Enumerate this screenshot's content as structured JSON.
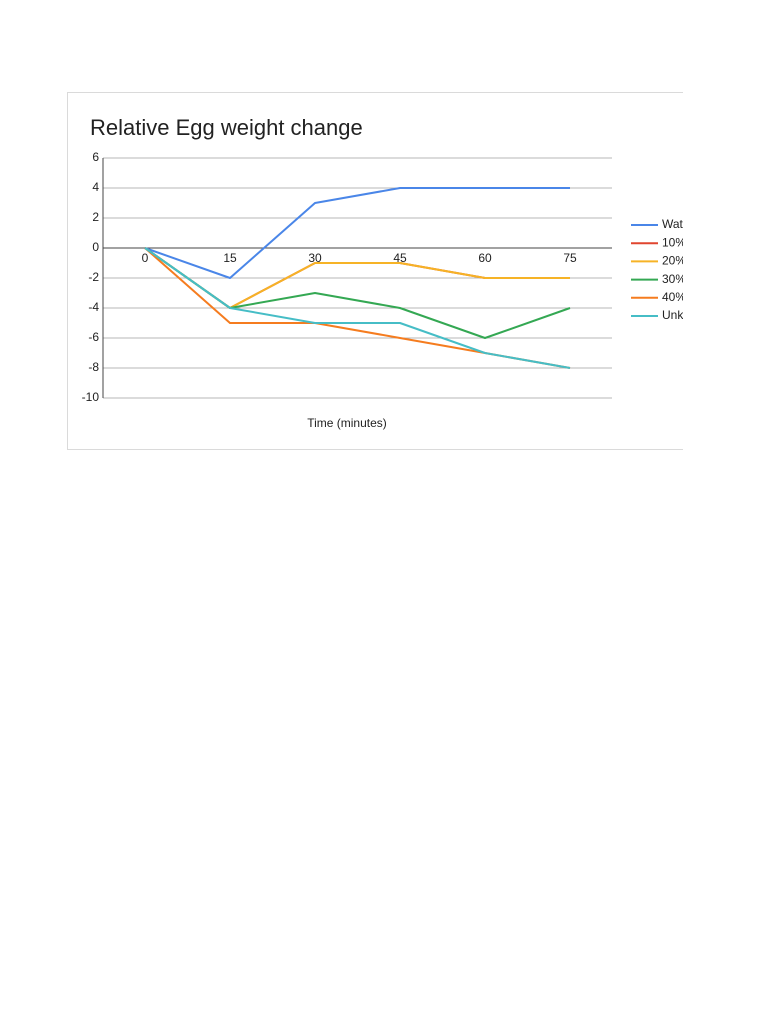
{
  "chart_data": {
    "type": "line",
    "title": "Relative Egg weight change",
    "x_label": "Time (minutes)",
    "categories": [
      "0",
      "15",
      "30",
      "45",
      "60",
      "75"
    ],
    "series": [
      {
        "name": "Wat",
        "color": "#4a86e8",
        "values": [
          0,
          -2,
          3,
          4,
          4,
          4
        ]
      },
      {
        "name": "10%",
        "color": "#e0452f",
        "values": [
          0,
          -4,
          -1,
          -1,
          -2,
          -2
        ]
      },
      {
        "name": "20%",
        "color": "#f6b326",
        "values": [
          0,
          -4,
          -1,
          -1,
          -2,
          -2
        ]
      },
      {
        "name": "30%",
        "color": "#34a853",
        "values": [
          0,
          -4,
          -3,
          -4,
          -6,
          -4
        ]
      },
      {
        "name": "40%",
        "color": "#f57c1f",
        "values": [
          0,
          -5,
          -5,
          -6,
          -7,
          -8
        ]
      },
      {
        "name": "Unk",
        "color": "#46bdc6",
        "values": [
          0,
          -4,
          -5,
          -5,
          -7,
          -8
        ]
      }
    ],
    "ylim": [
      -10,
      6
    ],
    "yticks": [
      -10,
      -8,
      -6,
      -4,
      -2,
      0,
      2,
      4,
      6
    ],
    "grid": true,
    "legend": "right"
  }
}
